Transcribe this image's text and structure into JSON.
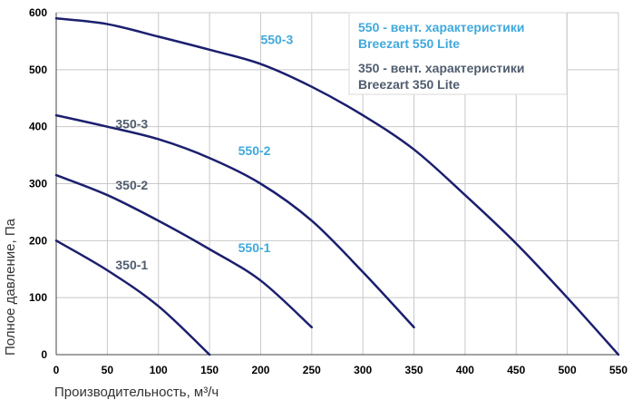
{
  "chart_data": {
    "type": "line",
    "xlabel": "Производительность, м³/ч",
    "ylabel": "Полное давление, Па",
    "xlim": [
      0,
      550
    ],
    "ylim": [
      0,
      600
    ],
    "xticks": [
      0,
      50,
      100,
      150,
      200,
      250,
      300,
      350,
      400,
      450,
      500,
      550
    ],
    "yticks": [
      0,
      100,
      200,
      300,
      400,
      500,
      600
    ],
    "grid": true,
    "legend_position": "top-right",
    "legend": [
      {
        "text_line1": "550 - вент. характеристики",
        "text_line2": "Breezart 550 Lite",
        "color": "#3fa9dc"
      },
      {
        "text_line1": "350 - вент. характеристики",
        "text_line2": "Breezart 350 Lite",
        "color": "#4f5d6e"
      }
    ],
    "series": [
      {
        "name": "550-3",
        "color": "#1b1f6e",
        "label_color": "#3fa9dc",
        "x": [
          0,
          50,
          100,
          150,
          200,
          250,
          300,
          350,
          400,
          450,
          500,
          550
        ],
        "y": [
          590,
          580,
          558,
          535,
          510,
          470,
          420,
          360,
          280,
          195,
          100,
          0
        ]
      },
      {
        "name": "550-2",
        "color": "#1b1f6e",
        "label_color": "#3fa9dc",
        "x": [
          0,
          50,
          100,
          150,
          200,
          250,
          300,
          350
        ],
        "y": [
          420,
          400,
          378,
          345,
          300,
          235,
          145,
          48
        ]
      },
      {
        "name": "550-1",
        "color": "#1b1f6e",
        "label_color": "#3fa9dc",
        "x": [
          0,
          50,
          100,
          150,
          200,
          250
        ],
        "y": [
          315,
          280,
          235,
          185,
          130,
          48
        ]
      },
      {
        "name": "350-3",
        "color": "#1b1f6e",
        "label_color": "#4f5d6e",
        "x": [],
        "y": []
      },
      {
        "name": "350-2",
        "color": "#1b1f6e",
        "label_color": "#4f5d6e",
        "x": [],
        "y": []
      },
      {
        "name": "350-1",
        "color": "#1b1f6e",
        "label_color": "#4f5d6e",
        "x": [
          0,
          50,
          100,
          150
        ],
        "y": [
          200,
          148,
          85,
          0
        ]
      }
    ],
    "curve_labels": [
      {
        "text": "550-3",
        "x": 200,
        "y": 545,
        "color": "#3fa9dc"
      },
      {
        "text": "550-2",
        "x": 178,
        "y": 350,
        "color": "#3fa9dc"
      },
      {
        "text": "550-1",
        "x": 178,
        "y": 180,
        "color": "#3fa9dc"
      },
      {
        "text": "350-3",
        "x": 58,
        "y": 397,
        "color": "#4f5d6e"
      },
      {
        "text": "350-2",
        "x": 58,
        "y": 290,
        "color": "#4f5d6e"
      },
      {
        "text": "350-1",
        "x": 58,
        "y": 150,
        "color": "#4f5d6e"
      }
    ]
  }
}
